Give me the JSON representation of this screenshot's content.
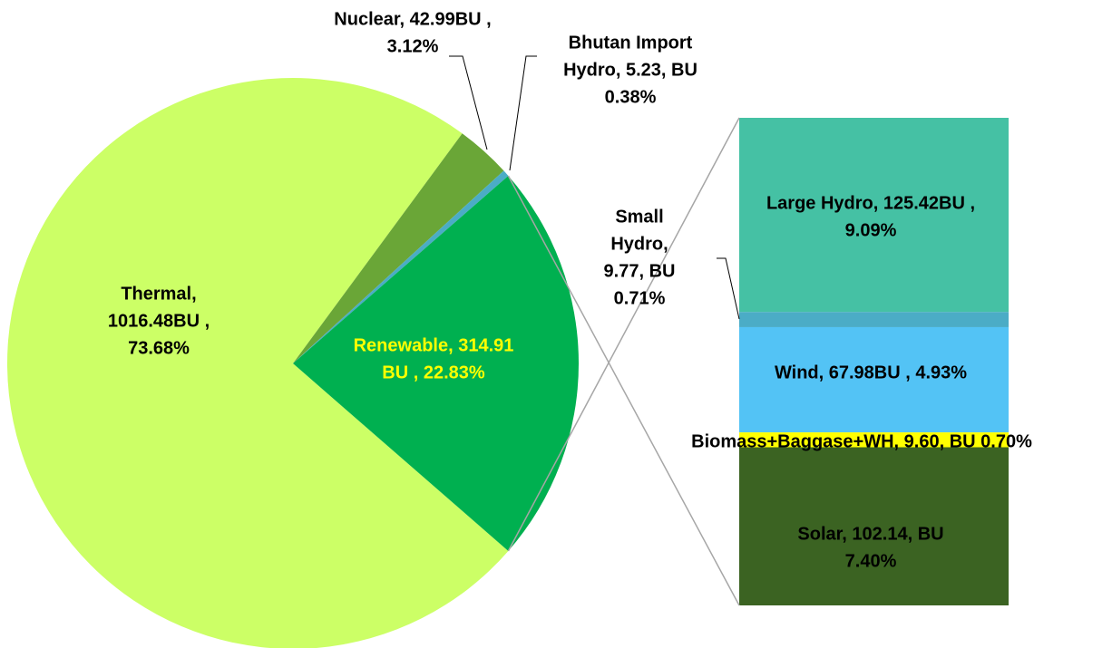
{
  "chart_data": {
    "type": "pie-of-bar",
    "pie": {
      "values": [
        1016.48,
        42.99,
        5.23,
        314.91
      ],
      "value_labels": [
        [
          "Thermal,",
          "1016.48BU ,",
          "73.68%"
        ],
        [
          "Nuclear, 42.99BU ,",
          "3.12%"
        ],
        [
          "Bhutan Import",
          "Hydro, 5.23, BU",
          "0.38%"
        ],
        [
          "Renewable, 314.91",
          "BU , 22.83%"
        ]
      ],
      "colors": [
        "#ccff66",
        "#6aa637",
        "#4bacc6",
        "#00b050"
      ]
    },
    "bar": {
      "values": [
        125.42,
        9.77,
        67.98,
        9.6,
        102.14
      ],
      "value_labels": [
        [
          "Large Hydro, 125.42BU ,",
          "9.09%"
        ],
        [
          "Small",
          "Hydro,",
          "9.77, BU",
          "0.71%"
        ],
        [
          "Wind, 67.98BU , 4.93%"
        ],
        [
          "Biomass+Baggase+WH, 9.60, BU  0.70%"
        ],
        [
          "Solar, 102.14, BU",
          "7.40%"
        ]
      ],
      "colors": [
        "#45c1a4",
        "#4bacc6",
        "#53c3f5",
        "#ffff00",
        "#3b6322"
      ]
    }
  }
}
